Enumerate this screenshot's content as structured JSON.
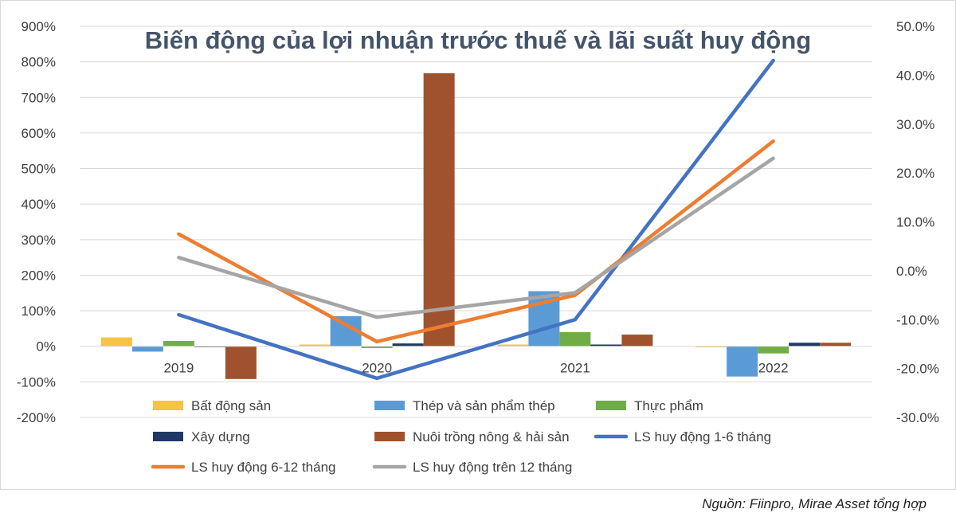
{
  "chart_data": {
    "type": "bar",
    "title": "Biến động của lợi nhuận trước thuế và lãi suất huy động",
    "categories": [
      "2019",
      "2020",
      "2021",
      "2022"
    ],
    "y_left": {
      "ylim": [
        -200,
        900
      ],
      "ticks": [
        -200,
        -100,
        0,
        100,
        200,
        300,
        400,
        500,
        600,
        700,
        800,
        900
      ],
      "tick_labels": [
        "-200%",
        "-100%",
        "0%",
        "100%",
        "200%",
        "300%",
        "400%",
        "500%",
        "600%",
        "700%",
        "800%",
        "900%"
      ]
    },
    "y_right": {
      "ylim": [
        -30,
        50
      ],
      "ticks": [
        -30,
        -20,
        -10,
        0,
        10,
        20,
        30,
        40,
        50
      ],
      "tick_labels": [
        "-30.0%",
        "-20.0%",
        "-10.0%",
        "0.0%",
        "10.0%",
        "20.0%",
        "30.0%",
        "40.0%",
        "50.0%"
      ]
    },
    "bar_series": [
      {
        "name": "Bất động sản",
        "color": "#f6c342",
        "values": [
          25,
          5,
          5,
          -3
        ]
      },
      {
        "name": "Thép và sản phẩm thép",
        "color": "#5b9bd5",
        "values": [
          -15,
          85,
          155,
          -85
        ]
      },
      {
        "name": "Thực phẩm",
        "color": "#70ad47",
        "values": [
          15,
          -5,
          40,
          -20
        ]
      },
      {
        "name": "Xây dựng",
        "color": "#203864",
        "values": [
          0,
          8,
          5,
          10
        ]
      },
      {
        "name": "Nuôi trồng nông & hải sản",
        "color": "#a0522d",
        "values": [
          -92,
          768,
          33,
          10
        ]
      }
    ],
    "line_series": [
      {
        "name": "LS huy động 1-6 tháng",
        "color": "#4472c4",
        "axis": "right",
        "values": [
          -9,
          -22,
          -10,
          43
        ]
      },
      {
        "name": "LS huy động 6-12 tháng",
        "color": "#ed7d31",
        "axis": "right",
        "values": [
          7.5,
          -14.5,
          -5,
          26.5
        ]
      },
      {
        "name": "LS huy động trên 12 tháng",
        "color": "#a5a5a5",
        "axis": "right",
        "values": [
          2.7,
          -9.5,
          -4.5,
          23
        ]
      }
    ],
    "legend_position": "bottom",
    "grid": true
  },
  "source": "Nguồn: Fiinpro, Mirae Asset tổng hợp"
}
